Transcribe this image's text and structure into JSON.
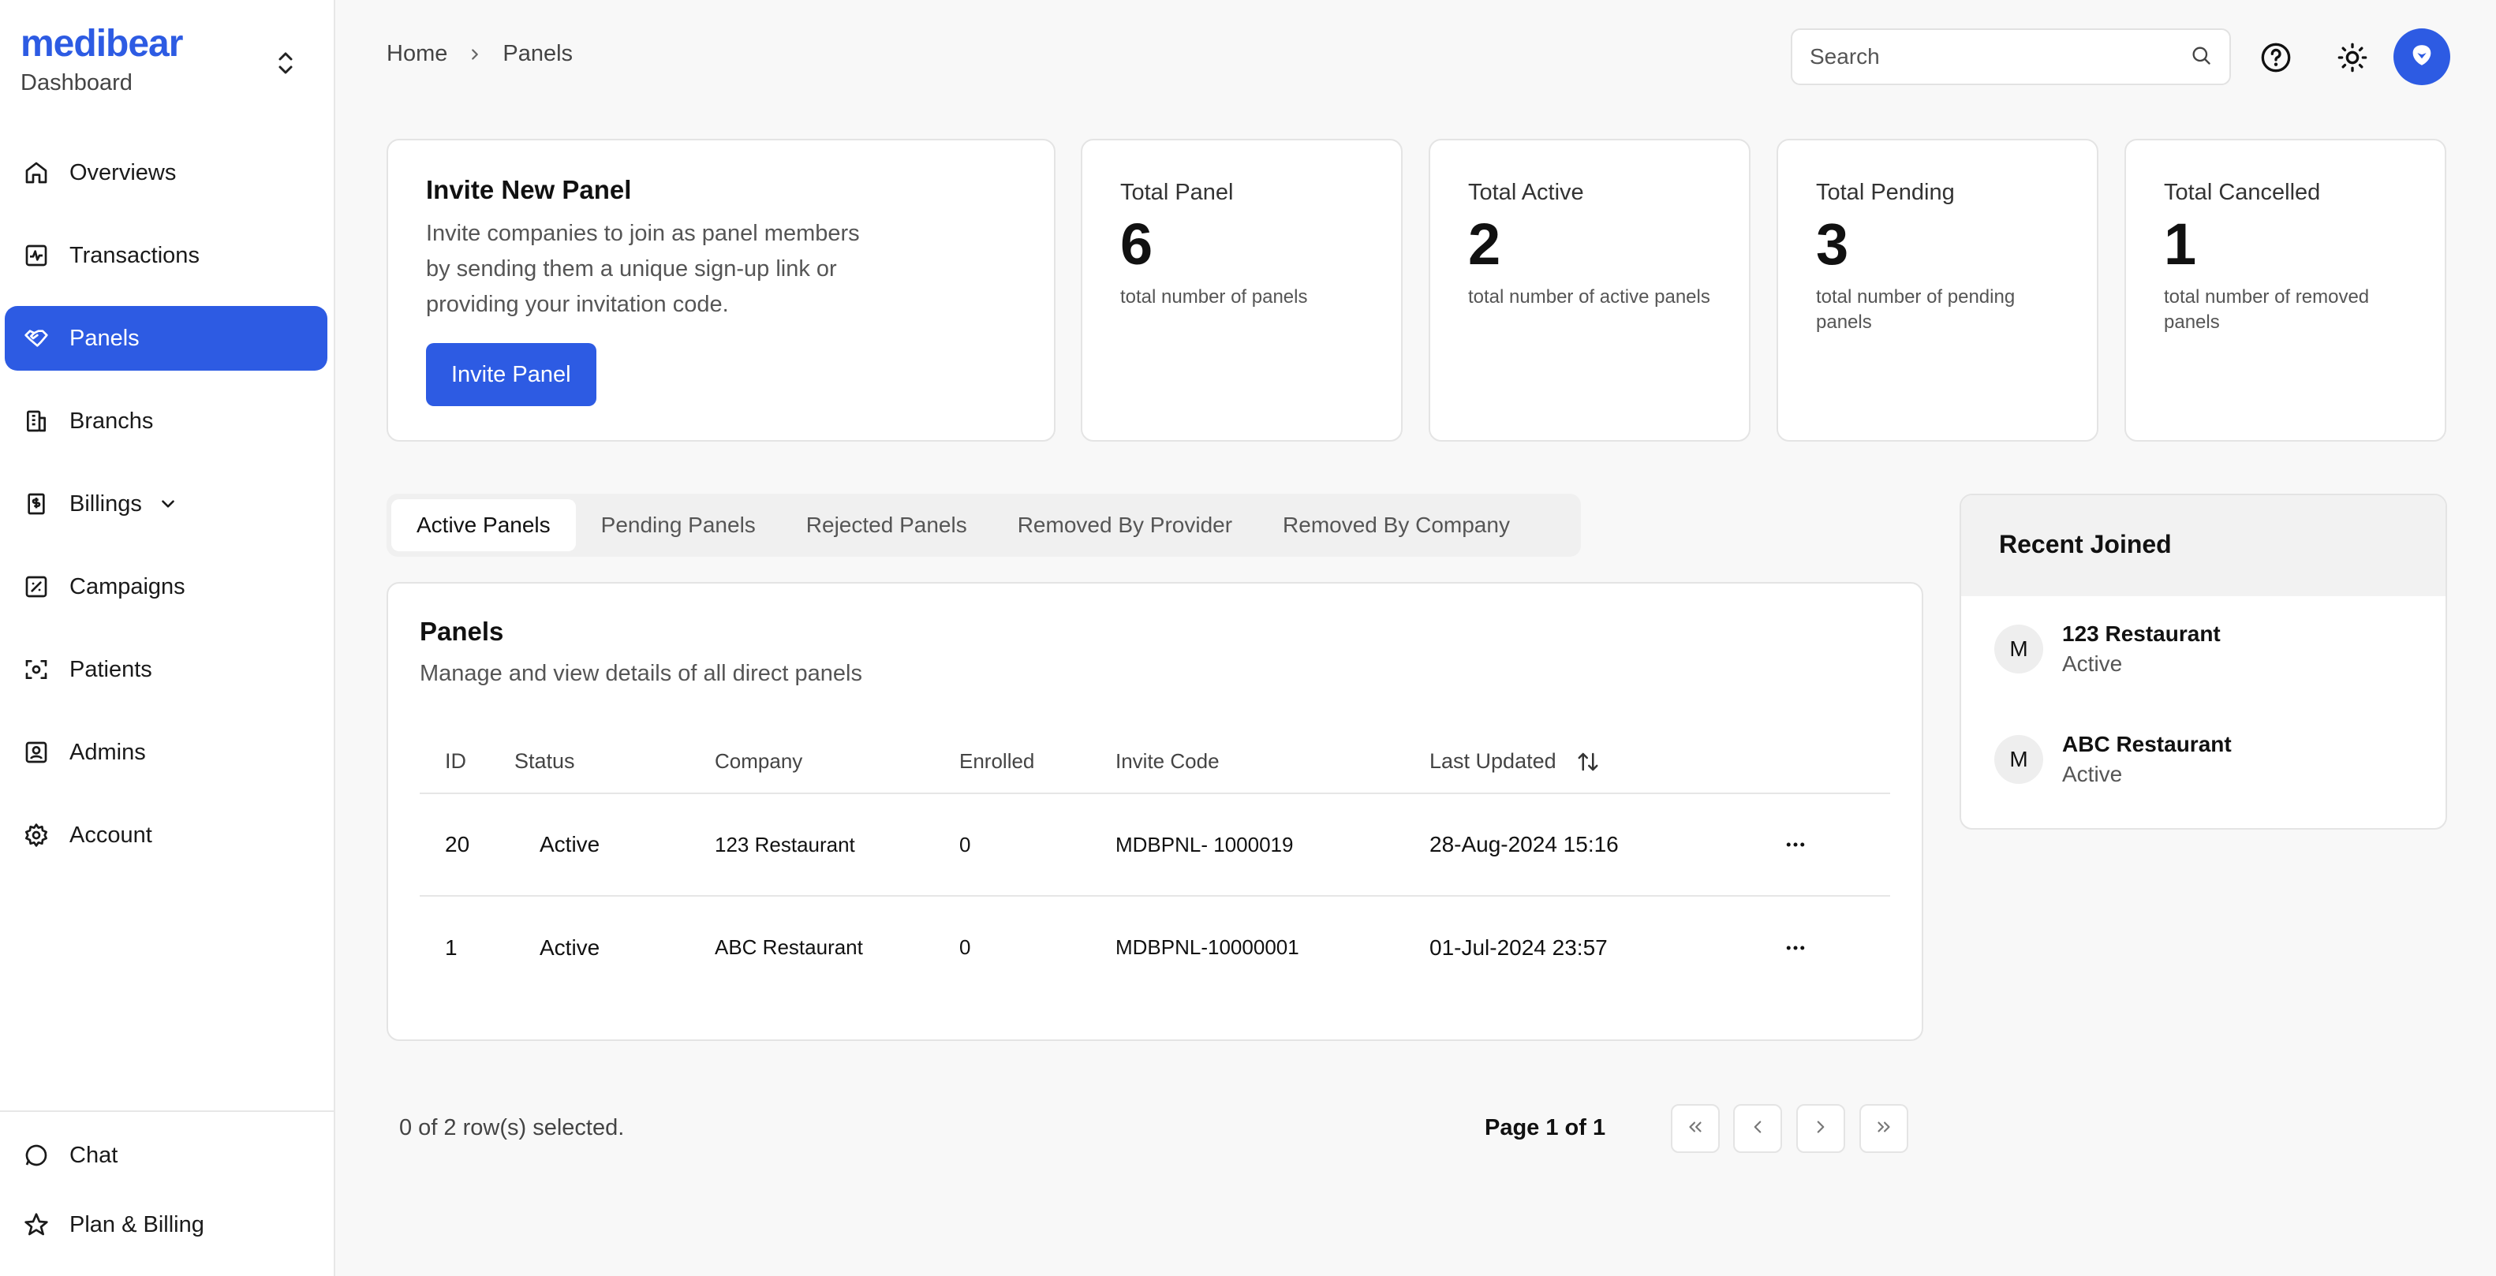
{
  "sidebar": {
    "brand": "medibear",
    "brand_sub": "Dashboard",
    "items": [
      {
        "label": "Overviews"
      },
      {
        "label": "Transactions"
      },
      {
        "label": "Panels"
      },
      {
        "label": "Branchs"
      },
      {
        "label": "Billings"
      },
      {
        "label": "Campaigns"
      },
      {
        "label": "Patients"
      },
      {
        "label": "Admins"
      },
      {
        "label": "Account"
      }
    ],
    "bottom": [
      {
        "label": "Chat"
      },
      {
        "label": "Plan & Billing"
      }
    ]
  },
  "header": {
    "breadcrumb": [
      "Home",
      "Panels"
    ],
    "search_placeholder": "Search"
  },
  "invite": {
    "title": "Invite New Panel",
    "text": "Invite companies to join as panel members by sending them a unique sign-up link or providing your invitation code.",
    "button": "Invite Panel"
  },
  "stats": [
    {
      "label": "Total Panel",
      "value": "6",
      "desc": "total number of panels"
    },
    {
      "label": "Total Active",
      "value": "2",
      "desc": "total number of active panels"
    },
    {
      "label": "Total Pending",
      "value": "3",
      "desc": "total number of pending panels"
    },
    {
      "label": "Total Cancelled",
      "value": "1",
      "desc": "total number of removed panels"
    }
  ],
  "tabs": [
    "Active Panels",
    "Pending Panels",
    "Rejected Panels",
    "Removed By Provider",
    "Removed By Company"
  ],
  "panels": {
    "title": "Panels",
    "subtitle": "Manage and view details of all direct panels",
    "columns": [
      "ID",
      "Status",
      "Company",
      "Enrolled",
      "Invite Code",
      "Last Updated"
    ],
    "rows": [
      {
        "id": "20",
        "status": "Active",
        "company": "123 Restaurant",
        "enrolled": "0",
        "code": "MDBPNL- 1000019",
        "updated": "28-Aug-2024 15:16"
      },
      {
        "id": "1",
        "status": "Active",
        "company": "ABC Restaurant",
        "enrolled": "0",
        "code": "MDBPNL-10000001",
        "updated": "01-Jul-2024 23:57"
      }
    ]
  },
  "recent": {
    "title": "Recent Joined",
    "items": [
      {
        "initial": "M",
        "name": "123 Restaurant",
        "status": "Active"
      },
      {
        "initial": "M",
        "name": "ABC Restaurant",
        "status": "Active"
      }
    ]
  },
  "footer": {
    "selection": "0 of 2 row(s) selected.",
    "page": "Page 1 of 1"
  },
  "colors": {
    "accent": "#2d5be3",
    "background": "#f8f8f8"
  },
  "icons": [
    "chevrons-up-down-icon",
    "home-icon",
    "activity-icon",
    "handshake-icon",
    "building-icon",
    "receipt-icon",
    "chevron-down-icon",
    "campaign-icon",
    "scan-face-icon",
    "contact-icon",
    "gear-icon",
    "message-circle-icon",
    "star-icon",
    "chevron-right-icon",
    "search-icon",
    "help-circle-icon",
    "sun-icon",
    "avatar-logo-icon",
    "sort-arrows-icon",
    "more-horizontal-icon",
    "chevrons-left-icon",
    "chevron-left-icon",
    "chevrons-right-icon"
  ]
}
